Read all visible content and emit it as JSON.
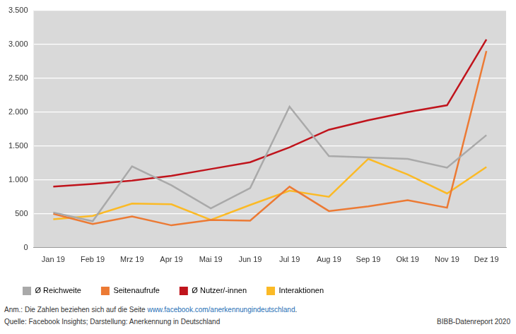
{
  "chart_data": {
    "type": "line",
    "categories": [
      "Jan 19",
      "Feb 19",
      "Mrz 19",
      "Apr 19",
      "Mai 19",
      "Jun 19",
      "Jul 19",
      "Aug 19",
      "Sep 19",
      "Okt 19",
      "Nov 19",
      "Dez 19"
    ],
    "series": [
      {
        "name": "Ø Reichweite",
        "color": "#a9a9a9",
        "values": [
          520,
          390,
          1200,
          920,
          580,
          880,
          2080,
          1350,
          1330,
          1310,
          1180,
          1660
        ]
      },
      {
        "name": "Seitenaufrufe",
        "color": "#ec7a34",
        "values": [
          500,
          350,
          460,
          330,
          410,
          400,
          900,
          540,
          610,
          700,
          590,
          2900
        ]
      },
      {
        "name": "Ø Nutzer/-innen",
        "color": "#c0141c",
        "values": [
          900,
          940,
          990,
          1060,
          1160,
          1260,
          1480,
          1740,
          1880,
          2000,
          2100,
          3070
        ]
      },
      {
        "name": "Interaktionen",
        "color": "#fbba26",
        "values": [
          420,
          470,
          650,
          640,
          410,
          630,
          840,
          750,
          1310,
          1080,
          800,
          1190
        ]
      }
    ],
    "ylim": [
      0,
      3500
    ],
    "yticks": [
      0,
      500,
      {
        "value": 1000,
        "label": "1.000"
      },
      {
        "value": 1500,
        "label": "1.500"
      },
      {
        "value": 2000,
        "label": "2.000"
      },
      {
        "value": 2500,
        "label": "2.500"
      },
      {
        "value": 3000,
        "label": "3.000"
      },
      {
        "value": 3500,
        "label": "3.500"
      }
    ],
    "grid": true,
    "legend": "bottom-left",
    "annotations": [
      "Anm.: Die Zahlen beziehen sich auf die Seite www.facebook.com/anerkennungindeutschland.",
      "Quelle: Facebook Insights; Darstellung: Anerkennung in Deutschland",
      "BIBB-Datenreport 2020"
    ]
  }
}
